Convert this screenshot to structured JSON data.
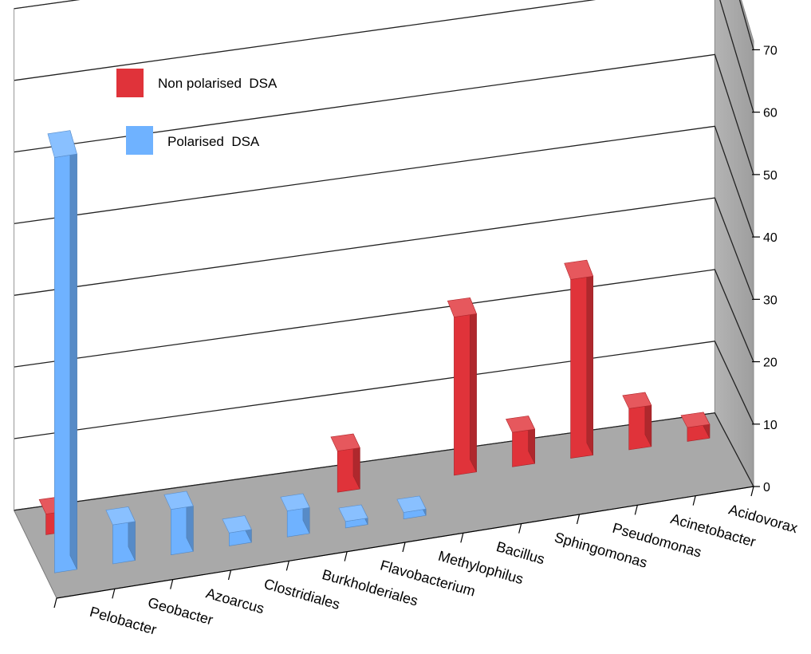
{
  "chart_data": {
    "type": "bar",
    "variant": "3d-clustered-depth",
    "title": "",
    "xlabel": "",
    "ylabel": "",
    "ylim": [
      0,
      70
    ],
    "y_ticks": [
      "0",
      "10",
      "20",
      "30",
      "40",
      "50",
      "60",
      "70"
    ],
    "y_axis_side": "right",
    "grid": true,
    "legend_position": "top-left",
    "categories": [
      "Pelobacter",
      "Geobacter",
      "Azoarcus",
      "Clostridiales",
      "Burkholderiales",
      "Flavobacterium",
      "Methylophilus",
      "Bacillus",
      "Sphingomonas",
      "Pseudomonas",
      "Acinetobacter",
      "Acidovorax"
    ],
    "series": [
      {
        "name": "Non polarised  DSA",
        "color": "#e0333a",
        "values": [
          3,
          0,
          0,
          0,
          0,
          6,
          0,
          23,
          5,
          26,
          6,
          2
        ]
      },
      {
        "name": "Polarised  DSA",
        "color": "#6fb2ff",
        "values": [
          64,
          6,
          7,
          2,
          4,
          1,
          1,
          0,
          0,
          0,
          0,
          0
        ]
      }
    ]
  }
}
